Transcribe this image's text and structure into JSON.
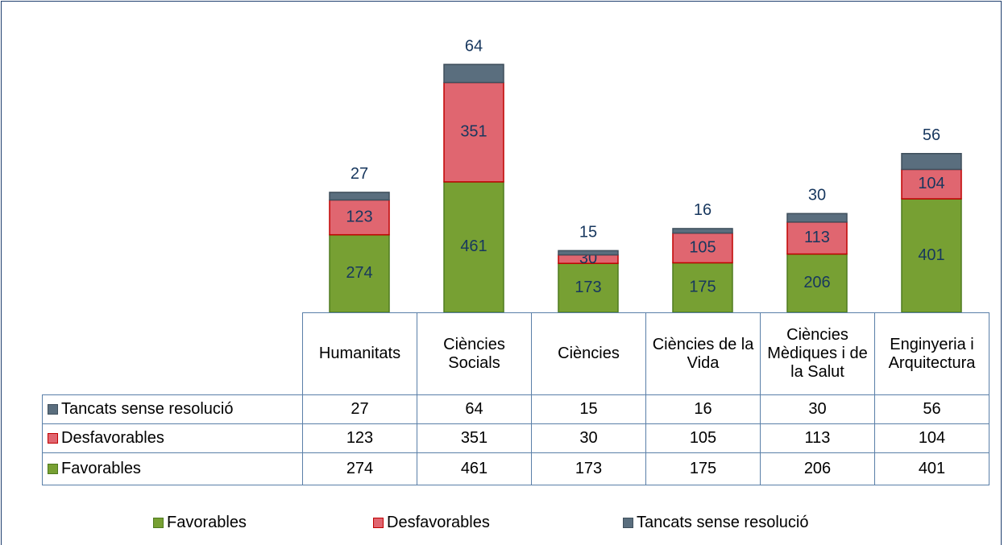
{
  "chart_data": {
    "type": "stacked_bar",
    "categories": [
      "Humanitats",
      "Ciències Socials",
      "Ciències",
      "Ciències de la Vida",
      "Ciències Mèdiques i de la Salut",
      "Enginyeria i Arquitectura"
    ],
    "series": [
      {
        "name": "Favorables",
        "color": "#77a033",
        "values": [
          274,
          461,
          173,
          175,
          206,
          401
        ]
      },
      {
        "name": "Desfavorables",
        "color": "#e06670",
        "values": [
          123,
          351,
          30,
          105,
          113,
          104
        ]
      },
      {
        "name": "Tancats sense resolució",
        "color": "#5a6e7e",
        "values": [
          27,
          64,
          15,
          16,
          30,
          56
        ]
      }
    ],
    "legend": "bottom"
  }
}
